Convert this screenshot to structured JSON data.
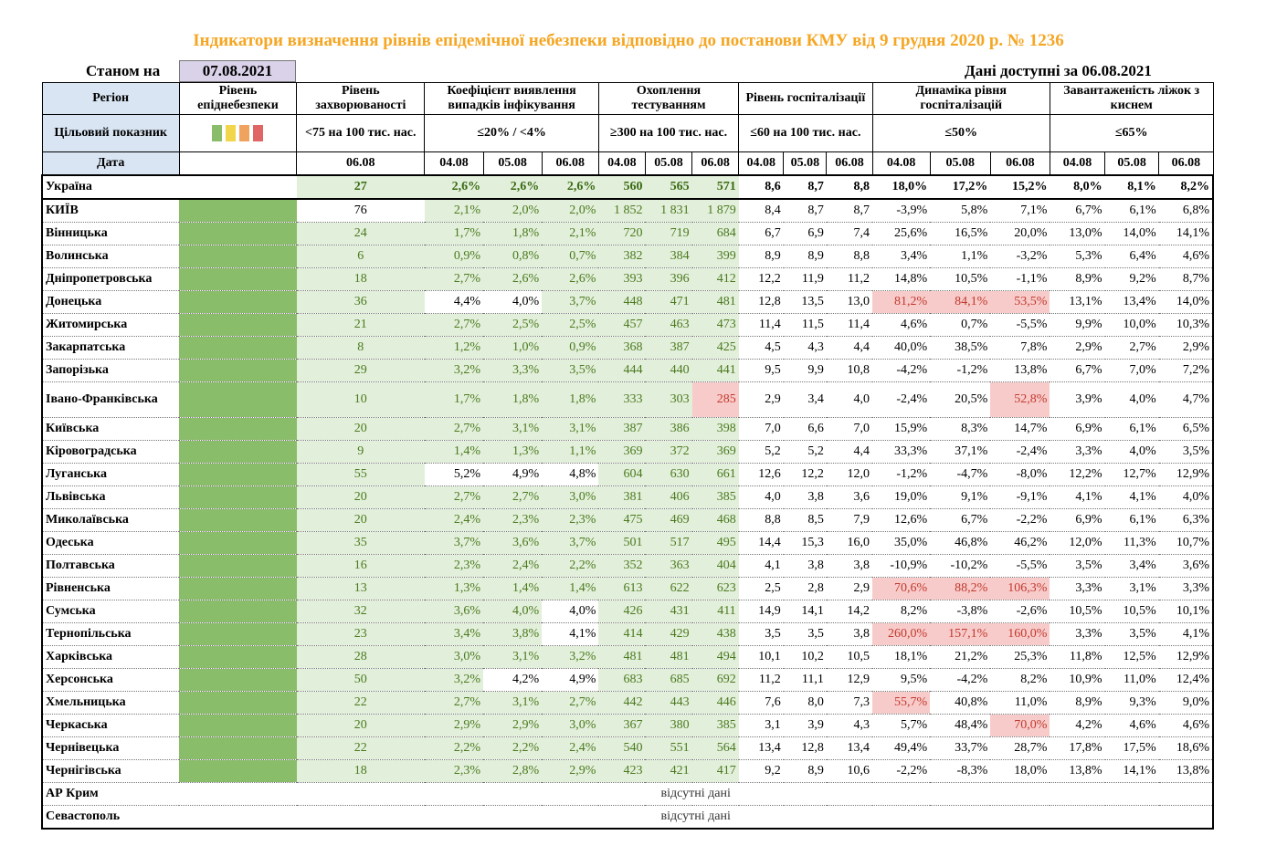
{
  "title": "Індикатори визначення рівнів епідемічної небезпеки відповідно до постанови КМУ від 9 грудня 2020 р. № 1236",
  "state_label": "Станом на",
  "state_date": "07.08.2021",
  "available_label": "Дані доступні за 06.08.2021",
  "colors": {
    "green_fill": "#e2efda",
    "red_fill": "#f8cbcb",
    "level_green": "#8abd6a",
    "header_blue": "#d9e5f3"
  },
  "headers": {
    "region": "Регіон",
    "level": "Рівень епіднебезпеки",
    "incidence": "Рівень захворюваності",
    "detection": "Коефіцієнт виявлення випадків інфікування",
    "testing": "Охоплення тестуванням",
    "hosp": "Рівень госпіталізації",
    "hosp_dyn": "Динаміка рівня госпіталізацій",
    "beds": "Завантаженість ліжок з киснем"
  },
  "targets": {
    "label": "Цільовий показник",
    "incidence": "<75 на 100 тис. нас.",
    "detection": "≤20% / <4%",
    "testing": "≥300 на 100 тис. нас.",
    "hosp": "≤60 на 100 тис. нас.",
    "hosp_dyn": "≤50%",
    "beds": "≤65%"
  },
  "legend_colors": [
    "#8abd6a",
    "#f1d54a",
    "#f0a35e",
    "#e06666"
  ],
  "date_label": "Дата",
  "dates": {
    "incidence": "06.08",
    "triple": [
      "04.08",
      "05.08",
      "06.08"
    ]
  },
  "ukraine": {
    "name": "Україна",
    "incidence": "27",
    "detection": [
      "2,6%",
      "2,6%",
      "2,6%"
    ],
    "testing": [
      "560",
      "565",
      "571"
    ],
    "hosp": [
      "8,6",
      "8,7",
      "8,8"
    ],
    "hosp_dyn": [
      "18,0%",
      "17,2%",
      "15,2%"
    ],
    "beds": [
      "8,0%",
      "8,1%",
      "8,2%"
    ]
  },
  "rows": [
    {
      "name": "КИЇВ",
      "inc": "76",
      "incg": false,
      "det": [
        "2,1%",
        "2,0%",
        "2,0%"
      ],
      "detg": [
        1,
        1,
        1
      ],
      "tst": [
        "1 852",
        "1 831",
        "1 879"
      ],
      "tstg": [
        1,
        1,
        1
      ],
      "hosp": [
        "8,4",
        "8,7",
        "8,7"
      ],
      "dyn": [
        "-3,9%",
        "5,8%",
        "7,1%"
      ],
      "dynr": [
        0,
        0,
        0
      ],
      "beds": [
        "6,7%",
        "6,1%",
        "6,8%"
      ]
    },
    {
      "name": "Вінницька",
      "inc": "24",
      "incg": true,
      "det": [
        "1,7%",
        "1,8%",
        "2,1%"
      ],
      "detg": [
        1,
        1,
        1
      ],
      "tst": [
        "720",
        "719",
        "684"
      ],
      "tstg": [
        1,
        1,
        1
      ],
      "hosp": [
        "6,7",
        "6,9",
        "7,4"
      ],
      "dyn": [
        "25,6%",
        "16,5%",
        "20,0%"
      ],
      "dynr": [
        0,
        0,
        0
      ],
      "beds": [
        "13,0%",
        "14,0%",
        "14,1%"
      ]
    },
    {
      "name": "Волинська",
      "inc": "6",
      "incg": true,
      "det": [
        "0,9%",
        "0,8%",
        "0,7%"
      ],
      "detg": [
        1,
        1,
        1
      ],
      "tst": [
        "382",
        "384",
        "399"
      ],
      "tstg": [
        1,
        1,
        1
      ],
      "hosp": [
        "8,9",
        "8,9",
        "8,8"
      ],
      "dyn": [
        "3,4%",
        "1,1%",
        "-3,2%"
      ],
      "dynr": [
        0,
        0,
        0
      ],
      "beds": [
        "5,3%",
        "6,4%",
        "4,6%"
      ]
    },
    {
      "name": "Дніпропетровська",
      "inc": "18",
      "incg": true,
      "det": [
        "2,7%",
        "2,6%",
        "2,6%"
      ],
      "detg": [
        1,
        1,
        1
      ],
      "tst": [
        "393",
        "396",
        "412"
      ],
      "tstg": [
        1,
        1,
        1
      ],
      "hosp": [
        "12,2",
        "11,9",
        "11,2"
      ],
      "dyn": [
        "14,8%",
        "10,5%",
        "-1,1%"
      ],
      "dynr": [
        0,
        0,
        0
      ],
      "beds": [
        "8,9%",
        "9,2%",
        "8,7%"
      ]
    },
    {
      "name": "Донецька",
      "inc": "36",
      "incg": true,
      "det": [
        "4,4%",
        "4,0%",
        "3,7%"
      ],
      "detg": [
        0,
        0,
        1
      ],
      "tst": [
        "448",
        "471",
        "481"
      ],
      "tstg": [
        1,
        1,
        1
      ],
      "hosp": [
        "12,8",
        "13,5",
        "13,0"
      ],
      "dyn": [
        "81,2%",
        "84,1%",
        "53,5%"
      ],
      "dynr": [
        1,
        1,
        1
      ],
      "beds": [
        "13,1%",
        "13,4%",
        "14,0%"
      ]
    },
    {
      "name": "Житомирська",
      "inc": "21",
      "incg": true,
      "det": [
        "2,7%",
        "2,5%",
        "2,5%"
      ],
      "detg": [
        1,
        1,
        1
      ],
      "tst": [
        "457",
        "463",
        "473"
      ],
      "tstg": [
        1,
        1,
        1
      ],
      "hosp": [
        "11,4",
        "11,5",
        "11,4"
      ],
      "dyn": [
        "4,6%",
        "0,7%",
        "-5,5%"
      ],
      "dynr": [
        0,
        0,
        0
      ],
      "beds": [
        "9,9%",
        "10,0%",
        "10,3%"
      ]
    },
    {
      "name": "Закарпатська",
      "inc": "8",
      "incg": true,
      "det": [
        "1,2%",
        "1,0%",
        "0,9%"
      ],
      "detg": [
        1,
        1,
        1
      ],
      "tst": [
        "368",
        "387",
        "425"
      ],
      "tstg": [
        1,
        1,
        1
      ],
      "hosp": [
        "4,5",
        "4,3",
        "4,4"
      ],
      "dyn": [
        "40,0%",
        "38,5%",
        "7,8%"
      ],
      "dynr": [
        0,
        0,
        0
      ],
      "beds": [
        "2,9%",
        "2,7%",
        "2,9%"
      ]
    },
    {
      "name": "Запорізька",
      "inc": "29",
      "incg": true,
      "det": [
        "3,2%",
        "3,3%",
        "3,5%"
      ],
      "detg": [
        1,
        1,
        1
      ],
      "tst": [
        "444",
        "440",
        "441"
      ],
      "tstg": [
        1,
        1,
        1
      ],
      "hosp": [
        "9,5",
        "9,9",
        "10,8"
      ],
      "dyn": [
        "-4,2%",
        "-1,2%",
        "13,8%"
      ],
      "dynr": [
        0,
        0,
        0
      ],
      "beds": [
        "6,7%",
        "7,0%",
        "7,2%"
      ]
    },
    {
      "name": "Івано-Франківська",
      "inc": "10",
      "incg": true,
      "det": [
        "1,7%",
        "1,8%",
        "1,8%"
      ],
      "detg": [
        1,
        1,
        1
      ],
      "tst": [
        "333",
        "303",
        "285"
      ],
      "tstg": [
        1,
        1,
        2
      ],
      "hosp": [
        "2,9",
        "3,4",
        "4,0"
      ],
      "dyn": [
        "-2,4%",
        "20,5%",
        "52,8%"
      ],
      "dynr": [
        0,
        0,
        1
      ],
      "beds": [
        "3,9%",
        "4,0%",
        "4,7%"
      ],
      "tall": true
    },
    {
      "name": "Київська",
      "inc": "20",
      "incg": true,
      "det": [
        "2,7%",
        "3,1%",
        "3,1%"
      ],
      "detg": [
        1,
        1,
        1
      ],
      "tst": [
        "387",
        "386",
        "398"
      ],
      "tstg": [
        1,
        1,
        1
      ],
      "hosp": [
        "7,0",
        "6,6",
        "7,0"
      ],
      "dyn": [
        "15,9%",
        "8,3%",
        "14,7%"
      ],
      "dynr": [
        0,
        0,
        0
      ],
      "beds": [
        "6,9%",
        "6,1%",
        "6,5%"
      ]
    },
    {
      "name": "Кіровоградська",
      "inc": "9",
      "incg": true,
      "det": [
        "1,4%",
        "1,3%",
        "1,1%"
      ],
      "detg": [
        1,
        1,
        1
      ],
      "tst": [
        "369",
        "372",
        "369"
      ],
      "tstg": [
        1,
        1,
        1
      ],
      "hosp": [
        "5,2",
        "5,2",
        "4,4"
      ],
      "dyn": [
        "33,3%",
        "37,1%",
        "-2,4%"
      ],
      "dynr": [
        0,
        0,
        0
      ],
      "beds": [
        "3,3%",
        "4,0%",
        "3,5%"
      ]
    },
    {
      "name": "Луганська",
      "inc": "55",
      "incg": true,
      "det": [
        "5,2%",
        "4,9%",
        "4,8%"
      ],
      "detg": [
        0,
        0,
        0
      ],
      "tst": [
        "604",
        "630",
        "661"
      ],
      "tstg": [
        1,
        1,
        1
      ],
      "hosp": [
        "12,6",
        "12,2",
        "12,0"
      ],
      "dyn": [
        "-1,2%",
        "-4,7%",
        "-8,0%"
      ],
      "dynr": [
        0,
        0,
        0
      ],
      "beds": [
        "12,2%",
        "12,7%",
        "12,9%"
      ]
    },
    {
      "name": "Львівська",
      "inc": "20",
      "incg": true,
      "det": [
        "2,7%",
        "2,7%",
        "3,0%"
      ],
      "detg": [
        1,
        1,
        1
      ],
      "tst": [
        "381",
        "406",
        "385"
      ],
      "tstg": [
        1,
        1,
        1
      ],
      "hosp": [
        "4,0",
        "3,8",
        "3,6"
      ],
      "dyn": [
        "19,0%",
        "9,1%",
        "-9,1%"
      ],
      "dynr": [
        0,
        0,
        0
      ],
      "beds": [
        "4,1%",
        "4,1%",
        "4,0%"
      ]
    },
    {
      "name": "Миколаївська",
      "inc": "20",
      "incg": true,
      "det": [
        "2,4%",
        "2,3%",
        "2,3%"
      ],
      "detg": [
        1,
        1,
        1
      ],
      "tst": [
        "475",
        "469",
        "468"
      ],
      "tstg": [
        1,
        1,
        1
      ],
      "hosp": [
        "8,8",
        "8,5",
        "7,9"
      ],
      "dyn": [
        "12,6%",
        "6,7%",
        "-2,2%"
      ],
      "dynr": [
        0,
        0,
        0
      ],
      "beds": [
        "6,9%",
        "6,1%",
        "6,3%"
      ]
    },
    {
      "name": "Одеська",
      "inc": "35",
      "incg": true,
      "det": [
        "3,7%",
        "3,6%",
        "3,7%"
      ],
      "detg": [
        1,
        1,
        1
      ],
      "tst": [
        "501",
        "517",
        "495"
      ],
      "tstg": [
        1,
        1,
        1
      ],
      "hosp": [
        "14,4",
        "15,3",
        "16,0"
      ],
      "dyn": [
        "35,0%",
        "46,8%",
        "46,2%"
      ],
      "dynr": [
        0,
        0,
        0
      ],
      "beds": [
        "12,0%",
        "11,3%",
        "10,7%"
      ]
    },
    {
      "name": "Полтавська",
      "inc": "16",
      "incg": true,
      "det": [
        "2,3%",
        "2,4%",
        "2,2%"
      ],
      "detg": [
        1,
        1,
        1
      ],
      "tst": [
        "352",
        "363",
        "404"
      ],
      "tstg": [
        1,
        1,
        1
      ],
      "hosp": [
        "4,1",
        "3,8",
        "3,8"
      ],
      "dyn": [
        "-10,9%",
        "-10,2%",
        "-5,5%"
      ],
      "dynr": [
        0,
        0,
        0
      ],
      "beds": [
        "3,5%",
        "3,4%",
        "3,6%"
      ]
    },
    {
      "name": "Рівненська",
      "inc": "13",
      "incg": true,
      "det": [
        "1,3%",
        "1,4%",
        "1,4%"
      ],
      "detg": [
        1,
        1,
        1
      ],
      "tst": [
        "613",
        "622",
        "623"
      ],
      "tstg": [
        1,
        1,
        1
      ],
      "hosp": [
        "2,5",
        "2,8",
        "2,9"
      ],
      "dyn": [
        "70,6%",
        "88,2%",
        "106,3%"
      ],
      "dynr": [
        1,
        1,
        1
      ],
      "beds": [
        "3,3%",
        "3,1%",
        "3,3%"
      ]
    },
    {
      "name": "Сумська",
      "inc": "32",
      "incg": true,
      "det": [
        "3,6%",
        "4,0%",
        "4,0%"
      ],
      "detg": [
        1,
        1,
        0
      ],
      "tst": [
        "426",
        "431",
        "411"
      ],
      "tstg": [
        1,
        1,
        1
      ],
      "hosp": [
        "14,9",
        "14,1",
        "14,2"
      ],
      "dyn": [
        "8,2%",
        "-3,8%",
        "-2,6%"
      ],
      "dynr": [
        0,
        0,
        0
      ],
      "beds": [
        "10,5%",
        "10,5%",
        "10,1%"
      ]
    },
    {
      "name": "Тернопільська",
      "inc": "23",
      "incg": true,
      "det": [
        "3,4%",
        "3,8%",
        "4,1%"
      ],
      "detg": [
        1,
        1,
        0
      ],
      "tst": [
        "414",
        "429",
        "438"
      ],
      "tstg": [
        1,
        1,
        1
      ],
      "hosp": [
        "3,5",
        "3,5",
        "3,8"
      ],
      "dyn": [
        "260,0%",
        "157,1%",
        "160,0%"
      ],
      "dynr": [
        1,
        1,
        1
      ],
      "beds": [
        "3,3%",
        "3,5%",
        "4,1%"
      ]
    },
    {
      "name": "Харківська",
      "inc": "28",
      "incg": true,
      "det": [
        "3,0%",
        "3,1%",
        "3,2%"
      ],
      "detg": [
        1,
        1,
        1
      ],
      "tst": [
        "481",
        "481",
        "494"
      ],
      "tstg": [
        1,
        1,
        1
      ],
      "hosp": [
        "10,1",
        "10,2",
        "10,5"
      ],
      "dyn": [
        "18,1%",
        "21,2%",
        "25,3%"
      ],
      "dynr": [
        0,
        0,
        0
      ],
      "beds": [
        "11,8%",
        "12,5%",
        "12,9%"
      ]
    },
    {
      "name": "Херсонська",
      "inc": "50",
      "incg": true,
      "det": [
        "3,2%",
        "4,2%",
        "4,9%"
      ],
      "detg": [
        1,
        0,
        0
      ],
      "tst": [
        "683",
        "685",
        "692"
      ],
      "tstg": [
        1,
        1,
        1
      ],
      "hosp": [
        "11,2",
        "11,1",
        "12,9"
      ],
      "dyn": [
        "9,5%",
        "-4,2%",
        "8,2%"
      ],
      "dynr": [
        0,
        0,
        0
      ],
      "beds": [
        "10,9%",
        "11,0%",
        "12,4%"
      ]
    },
    {
      "name": "Хмельницька",
      "inc": "22",
      "incg": true,
      "det": [
        "2,7%",
        "3,1%",
        "2,7%"
      ],
      "detg": [
        1,
        1,
        1
      ],
      "tst": [
        "442",
        "443",
        "446"
      ],
      "tstg": [
        1,
        1,
        1
      ],
      "hosp": [
        "7,6",
        "8,0",
        "7,3"
      ],
      "dyn": [
        "55,7%",
        "40,8%",
        "11,0%"
      ],
      "dynr": [
        1,
        0,
        0
      ],
      "beds": [
        "8,9%",
        "9,3%",
        "9,0%"
      ]
    },
    {
      "name": "Черкаська",
      "inc": "20",
      "incg": true,
      "det": [
        "2,9%",
        "2,9%",
        "3,0%"
      ],
      "detg": [
        1,
        1,
        1
      ],
      "tst": [
        "367",
        "380",
        "385"
      ],
      "tstg": [
        1,
        1,
        1
      ],
      "hosp": [
        "3,1",
        "3,9",
        "4,3"
      ],
      "dyn": [
        "5,7%",
        "48,4%",
        "70,0%"
      ],
      "dynr": [
        0,
        0,
        1
      ],
      "beds": [
        "4,2%",
        "4,6%",
        "4,6%"
      ]
    },
    {
      "name": "Чернівецька",
      "inc": "22",
      "incg": true,
      "det": [
        "2,2%",
        "2,2%",
        "2,4%"
      ],
      "detg": [
        1,
        1,
        1
      ],
      "tst": [
        "540",
        "551",
        "564"
      ],
      "tstg": [
        1,
        1,
        1
      ],
      "hosp": [
        "13,4",
        "12,8",
        "13,4"
      ],
      "dyn": [
        "49,4%",
        "33,7%",
        "28,7%"
      ],
      "dynr": [
        0,
        0,
        0
      ],
      "beds": [
        "17,8%",
        "17,5%",
        "18,6%"
      ]
    },
    {
      "name": "Чернігівська",
      "inc": "18",
      "incg": true,
      "det": [
        "2,3%",
        "2,8%",
        "2,9%"
      ],
      "detg": [
        1,
        1,
        1
      ],
      "tst": [
        "423",
        "421",
        "417"
      ],
      "tstg": [
        1,
        1,
        1
      ],
      "hosp": [
        "9,2",
        "8,9",
        "10,6"
      ],
      "dyn": [
        "-2,2%",
        "-8,3%",
        "18,0%"
      ],
      "dynr": [
        0,
        0,
        0
      ],
      "beds": [
        "13,8%",
        "14,1%",
        "13,8%"
      ]
    }
  ],
  "missing_rows": [
    {
      "name": "АР Крим",
      "text": "відсутні дані"
    },
    {
      "name": "Севастополь",
      "text": "відсутні дані"
    }
  ]
}
